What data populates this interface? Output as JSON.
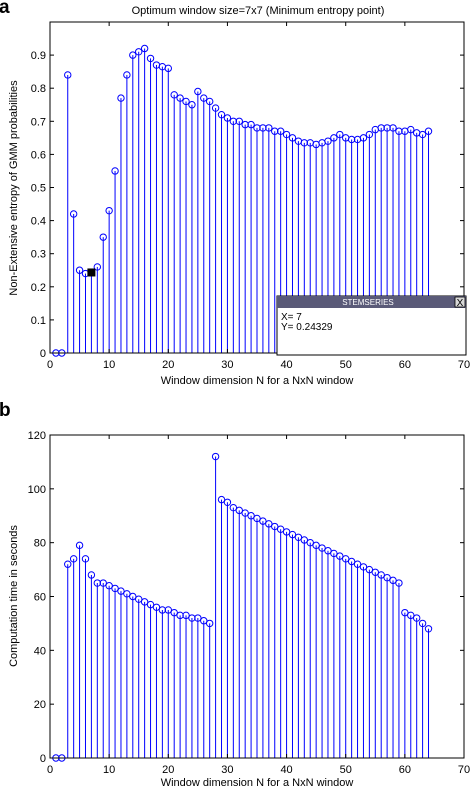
{
  "chart_data": [
    {
      "panel": "a",
      "type": "stem",
      "title": "Optimum window size=7x7 (Minimum entropy point)",
      "xlabel": "Window dimension N for a NxN window",
      "ylabel": "Non-Extensive entropy of GMM probabilities",
      "xlim": [
        0,
        70
      ],
      "ylim": [
        0,
        1
      ],
      "xticks": [
        0,
        10,
        20,
        30,
        40,
        50,
        60,
        70
      ],
      "yticks": [
        0,
        0.1,
        0.2,
        0.3,
        0.4,
        0.5,
        0.6,
        0.7,
        0.8,
        0.9
      ],
      "grid": false,
      "color": "#0000ff",
      "series": [
        {
          "x": [
            1,
            2,
            3,
            4,
            5,
            6,
            7,
            8,
            9,
            10,
            11,
            12,
            13,
            14,
            15,
            16,
            17,
            18,
            19,
            20,
            21,
            22,
            23,
            24,
            25,
            26,
            27,
            28,
            29,
            30,
            31,
            32,
            33,
            34,
            35,
            36,
            37,
            38,
            39,
            40,
            41,
            42,
            43,
            44,
            45,
            46,
            47,
            48,
            49,
            50,
            51,
            52,
            53,
            54,
            55,
            56,
            57,
            58,
            59,
            60,
            61,
            62,
            63,
            64
          ],
          "y": [
            0,
            0,
            0.84,
            0.42,
            0.25,
            0.24,
            0.24329,
            0.26,
            0.35,
            0.43,
            0.55,
            0.77,
            0.84,
            0.9,
            0.91,
            0.92,
            0.89,
            0.87,
            0.865,
            0.86,
            0.78,
            0.77,
            0.76,
            0.75,
            0.79,
            0.77,
            0.76,
            0.74,
            0.72,
            0.71,
            0.7,
            0.7,
            0.69,
            0.69,
            0.68,
            0.68,
            0.68,
            0.67,
            0.67,
            0.66,
            0.65,
            0.64,
            0.635,
            0.635,
            0.63,
            0.635,
            0.64,
            0.65,
            0.66,
            0.65,
            0.645,
            0.645,
            0.65,
            0.66,
            0.675,
            0.68,
            0.68,
            0.68,
            0.67,
            0.67,
            0.675,
            0.665,
            0.66,
            0.67
          ]
        }
      ],
      "highlight": {
        "x": 7,
        "y": 0.24329
      },
      "datatip": {
        "header": "STEMSERIES",
        "close": "X",
        "line1": "X= 7",
        "line2": "Y= 0.24329"
      }
    },
    {
      "panel": "b",
      "type": "stem",
      "xlabel": "Window dimension N for a NxN window",
      "ylabel": "Computation time in seconds",
      "xlim": [
        0,
        70
      ],
      "ylim": [
        0,
        120
      ],
      "xticks": [
        0,
        10,
        20,
        30,
        40,
        50,
        60,
        70
      ],
      "yticks": [
        0,
        20,
        40,
        60,
        80,
        100,
        120
      ],
      "grid": false,
      "color": "#0000ff",
      "series": [
        {
          "x": [
            1,
            2,
            3,
            4,
            5,
            6,
            7,
            8,
            9,
            10,
            11,
            12,
            13,
            14,
            15,
            16,
            17,
            18,
            19,
            20,
            21,
            22,
            23,
            24,
            25,
            26,
            27,
            28,
            29,
            30,
            31,
            32,
            33,
            34,
            35,
            36,
            37,
            38,
            39,
            40,
            41,
            42,
            43,
            44,
            45,
            46,
            47,
            48,
            49,
            50,
            51,
            52,
            53,
            54,
            55,
            56,
            57,
            58,
            59,
            60,
            61,
            62,
            63,
            64
          ],
          "y": [
            0,
            0,
            72,
            74,
            79,
            74,
            68,
            65,
            65,
            64,
            63,
            62,
            61,
            60,
            59,
            58,
            57,
            56,
            55,
            55,
            54,
            53,
            53,
            52,
            52,
            51,
            50,
            112,
            96,
            95,
            93,
            92,
            91,
            90,
            89,
            88,
            87,
            86,
            85,
            84,
            83,
            82,
            81,
            80,
            79,
            78,
            77,
            76,
            75,
            74,
            73,
            72,
            71,
            70,
            69,
            68,
            67,
            66,
            65,
            54,
            53,
            52,
            50,
            48
          ]
        }
      ]
    }
  ]
}
